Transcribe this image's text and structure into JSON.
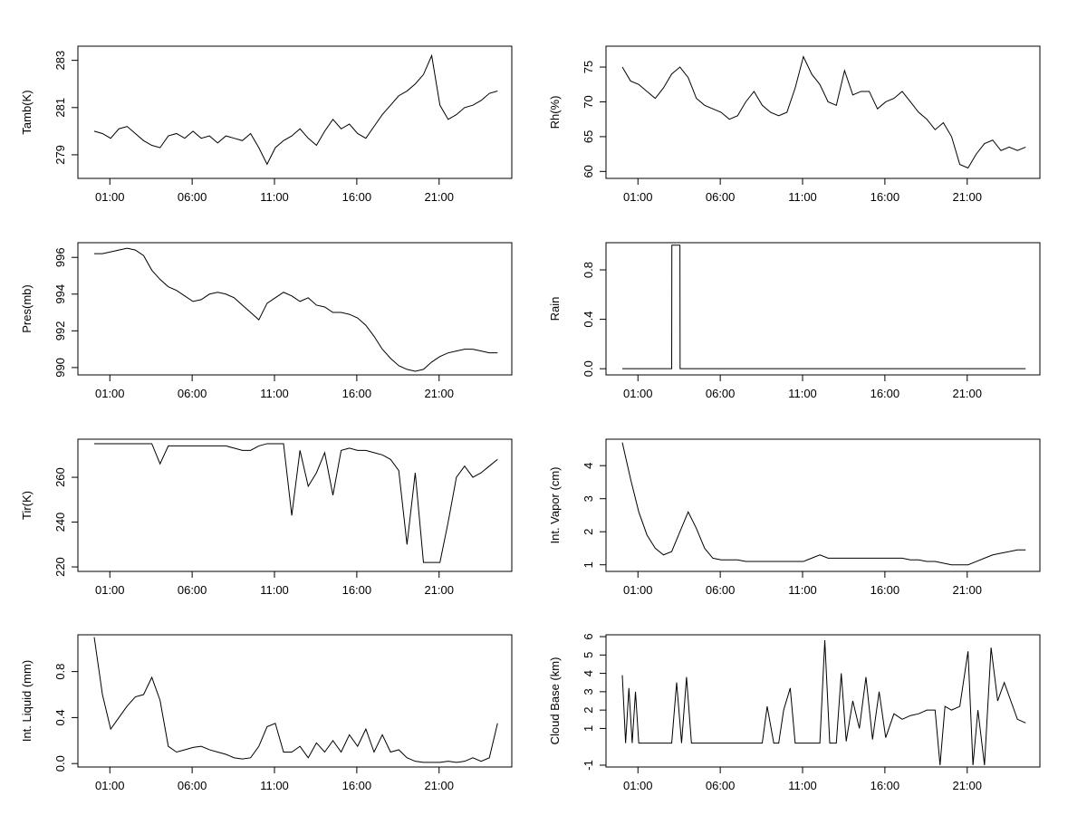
{
  "chart_data": [
    {
      "type": "line",
      "ylabel": "Tamb(K)",
      "xticks": [
        "01:00",
        "06:00",
        "11:00",
        "16:00",
        "21:00"
      ],
      "yticks": [
        279,
        281,
        283
      ],
      "ylim": [
        278.0,
        283.6
      ],
      "series": [
        {
          "x": [
            0,
            0.5,
            1,
            1.5,
            2,
            2.5,
            3,
            3.5,
            4,
            4.5,
            5,
            5.5,
            6,
            6.5,
            7,
            7.5,
            8,
            8.5,
            9,
            9.5,
            10,
            10.5,
            11,
            11.5,
            12,
            12.5,
            13,
            13.5,
            14,
            14.5,
            15,
            15.5,
            16,
            16.5,
            17,
            17.5,
            18,
            18.5,
            19,
            19.5,
            20,
            20.5,
            21,
            21.5,
            22,
            22.5,
            23,
            23.5,
            24,
            24.5
          ],
          "y": [
            280.0,
            279.9,
            279.7,
            280.1,
            280.2,
            279.9,
            279.6,
            279.4,
            279.3,
            279.8,
            279.9,
            279.7,
            280.0,
            279.7,
            279.8,
            279.5,
            279.8,
            279.7,
            279.6,
            279.9,
            279.3,
            278.6,
            279.3,
            279.6,
            279.8,
            280.1,
            279.7,
            279.4,
            280.0,
            280.5,
            280.1,
            280.3,
            279.9,
            279.7,
            280.2,
            280.7,
            281.1,
            281.5,
            281.7,
            282.0,
            282.4,
            283.2,
            281.1,
            280.5,
            280.7,
            281.0,
            281.1,
            281.3,
            281.6,
            281.7
          ]
        }
      ]
    },
    {
      "type": "line",
      "ylabel": "Rh(%)",
      "xticks": [
        "01:00",
        "06:00",
        "11:00",
        "16:00",
        "21:00"
      ],
      "yticks": [
        60,
        65,
        70,
        75
      ],
      "ylim": [
        59.0,
        78.0
      ],
      "series": [
        {
          "x": [
            0,
            0.5,
            1,
            1.5,
            2,
            2.5,
            3,
            3.5,
            4,
            4.5,
            5,
            5.5,
            6,
            6.5,
            7,
            7.5,
            8,
            8.5,
            9,
            9.5,
            10,
            10.5,
            11,
            11.5,
            12,
            12.5,
            13,
            13.5,
            14,
            14.5,
            15,
            15.5,
            16,
            16.5,
            17,
            17.5,
            18,
            18.5,
            19,
            19.5,
            20,
            20.5,
            21,
            21.5,
            22,
            22.5,
            23,
            23.5,
            24,
            24.5
          ],
          "y": [
            75.0,
            73.0,
            72.5,
            71.5,
            70.5,
            72.0,
            74.0,
            75.0,
            73.5,
            70.5,
            69.5,
            69.0,
            68.5,
            67.5,
            68.0,
            70.0,
            71.5,
            69.5,
            68.5,
            68.0,
            68.5,
            72.0,
            76.5,
            74.0,
            72.5,
            70.0,
            69.5,
            74.5,
            71.0,
            71.5,
            71.5,
            69.0,
            70.0,
            70.5,
            71.5,
            70.0,
            68.5,
            67.5,
            66.0,
            67.0,
            65.0,
            61.0,
            60.5,
            62.5,
            64.0,
            64.5,
            63.0,
            63.5,
            63.0,
            63.5
          ]
        }
      ]
    },
    {
      "type": "line",
      "ylabel": "Pres(mb)",
      "xticks": [
        "01:00",
        "06:00",
        "11:00",
        "16:00",
        "21:00"
      ],
      "yticks": [
        990,
        992,
        994,
        996
      ],
      "ylim": [
        989.6,
        996.8
      ],
      "series": [
        {
          "x": [
            0,
            0.5,
            1,
            1.5,
            2,
            2.5,
            3,
            3.5,
            4,
            4.5,
            5,
            5.5,
            6,
            6.5,
            7,
            7.5,
            8,
            8.5,
            9,
            9.5,
            10,
            10.5,
            11,
            11.5,
            12,
            12.5,
            13,
            13.5,
            14,
            14.5,
            15,
            15.5,
            16,
            16.5,
            17,
            17.5,
            18,
            18.5,
            19,
            19.5,
            20,
            20.5,
            21,
            21.5,
            22,
            22.5,
            23,
            23.5,
            24,
            24.5
          ],
          "y": [
            996.2,
            996.2,
            996.3,
            996.4,
            996.5,
            996.4,
            996.1,
            995.3,
            994.8,
            994.4,
            994.2,
            993.9,
            993.6,
            993.7,
            994.0,
            994.1,
            994.0,
            993.8,
            993.4,
            993.0,
            992.6,
            993.5,
            993.8,
            994.1,
            993.9,
            993.6,
            993.8,
            993.4,
            993.3,
            993.0,
            993.0,
            992.9,
            992.7,
            992.3,
            991.7,
            991.0,
            990.5,
            990.1,
            989.9,
            989.8,
            989.9,
            990.3,
            990.6,
            990.8,
            990.9,
            991.0,
            991.0,
            990.9,
            990.8,
            990.8
          ]
        }
      ]
    },
    {
      "type": "line",
      "ylabel": "Rain",
      "xticks": [
        "01:00",
        "06:00",
        "11:00",
        "16:00",
        "21:00"
      ],
      "yticks": [
        0.0,
        0.4,
        0.8
      ],
      "ylim": [
        -0.05,
        1.02
      ],
      "series": [
        {
          "x": [
            0,
            3.0,
            3.01,
            3.5,
            3.51,
            24.5
          ],
          "y": [
            0,
            0,
            1,
            1,
            0,
            0
          ]
        }
      ]
    },
    {
      "type": "line",
      "ylabel": "Tir(K)",
      "xticks": [
        "01:00",
        "06:00",
        "11:00",
        "16:00",
        "21:00"
      ],
      "yticks": [
        220,
        240,
        260
      ],
      "ylim": [
        218,
        277
      ],
      "series": [
        {
          "x": [
            0,
            0.5,
            1,
            1.5,
            2,
            2.5,
            3,
            3.5,
            4,
            4.5,
            5,
            5.5,
            6,
            6.5,
            7,
            7.5,
            8,
            8.5,
            9,
            9.5,
            10,
            10.5,
            11,
            11.5,
            12,
            12.5,
            13,
            13.5,
            14,
            14.5,
            15,
            15.5,
            16,
            16.5,
            17,
            17.5,
            18,
            18.5,
            19,
            19.5,
            20,
            20.5,
            21,
            21.5,
            22,
            22.5,
            23,
            23.5,
            24,
            24.5
          ],
          "y": [
            275,
            275,
            275,
            275,
            275,
            275,
            275,
            275,
            266,
            274,
            274,
            274,
            274,
            274,
            274,
            274,
            274,
            273,
            272,
            272,
            274,
            275,
            275,
            275,
            243,
            272,
            256,
            262,
            271,
            252,
            272,
            273,
            272,
            272,
            271,
            270,
            268,
            263,
            230,
            262,
            222,
            222,
            222,
            240,
            260,
            265,
            260,
            262,
            265,
            268
          ]
        }
      ]
    },
    {
      "type": "line",
      "ylabel": "Int. Vapor (cm)",
      "xticks": [
        "01:00",
        "06:00",
        "11:00",
        "16:00",
        "21:00"
      ],
      "yticks": [
        1,
        2,
        3,
        4
      ],
      "ylim": [
        0.8,
        4.8
      ],
      "series": [
        {
          "x": [
            0,
            0.5,
            1,
            1.5,
            2,
            2.5,
            3,
            3.5,
            4,
            4.5,
            5,
            5.5,
            6,
            6.5,
            7,
            7.5,
            8,
            8.5,
            9,
            9.5,
            10,
            10.5,
            11,
            11.5,
            12,
            12.5,
            13,
            13.5,
            14,
            14.5,
            15,
            15.5,
            16,
            16.5,
            17,
            17.5,
            18,
            18.5,
            19,
            19.5,
            20,
            20.5,
            21,
            21.5,
            22,
            22.5,
            23,
            23.5,
            24,
            24.5
          ],
          "y": [
            4.7,
            3.6,
            2.6,
            1.9,
            1.5,
            1.3,
            1.4,
            2.0,
            2.6,
            2.1,
            1.5,
            1.2,
            1.15,
            1.15,
            1.15,
            1.1,
            1.1,
            1.1,
            1.1,
            1.1,
            1.1,
            1.1,
            1.1,
            1.2,
            1.3,
            1.2,
            1.2,
            1.2,
            1.2,
            1.2,
            1.2,
            1.2,
            1.2,
            1.2,
            1.2,
            1.15,
            1.15,
            1.1,
            1.1,
            1.05,
            1.0,
            1.0,
            1.0,
            1.1,
            1.2,
            1.3,
            1.35,
            1.4,
            1.45,
            1.45
          ]
        }
      ]
    },
    {
      "type": "line",
      "ylabel": "Int. Liquid (mm)",
      "xticks": [
        "01:00",
        "06:00",
        "11:00",
        "16:00",
        "21:00"
      ],
      "yticks": [
        0.0,
        0.4,
        0.8
      ],
      "ylim": [
        -0.03,
        1.12
      ],
      "series": [
        {
          "x": [
            0,
            0.5,
            1,
            1.5,
            2,
            2.5,
            3,
            3.5,
            4,
            4.5,
            5,
            5.5,
            6,
            6.5,
            7,
            7.5,
            8,
            8.5,
            9,
            9.5,
            10,
            10.5,
            11,
            11.5,
            12,
            12.5,
            13,
            13.5,
            14,
            14.5,
            15,
            15.5,
            16,
            16.5,
            17,
            17.5,
            18,
            18.5,
            19,
            19.5,
            20,
            20.5,
            21,
            21.5,
            22,
            22.5,
            23,
            23.5,
            24,
            24.5
          ],
          "y": [
            1.1,
            0.6,
            0.3,
            0.4,
            0.5,
            0.58,
            0.6,
            0.75,
            0.55,
            0.15,
            0.1,
            0.12,
            0.14,
            0.15,
            0.12,
            0.1,
            0.08,
            0.05,
            0.04,
            0.05,
            0.15,
            0.32,
            0.35,
            0.1,
            0.1,
            0.15,
            0.05,
            0.18,
            0.1,
            0.2,
            0.1,
            0.25,
            0.15,
            0.3,
            0.1,
            0.25,
            0.1,
            0.12,
            0.05,
            0.02,
            0.01,
            0.01,
            0.01,
            0.02,
            0.01,
            0.02,
            0.05,
            0.02,
            0.05,
            0.35
          ]
        }
      ]
    },
    {
      "type": "line",
      "ylabel": "Cloud Base (km)",
      "xticks": [
        "01:00",
        "06:00",
        "11:00",
        "16:00",
        "21:00"
      ],
      "yticks": [
        -1,
        1,
        2,
        3,
        4,
        5,
        6
      ],
      "ylim": [
        -1.1,
        6.1
      ],
      "series": [
        {
          "x": [
            0,
            0.2,
            0.4,
            0.6,
            0.8,
            1.0,
            1.5,
            2.0,
            2.5,
            3.0,
            3.3,
            3.6,
            3.9,
            4.2,
            4.5,
            5,
            6,
            7,
            8,
            8.5,
            8.8,
            9.2,
            9.5,
            9.8,
            10.2,
            10.5,
            11,
            11.5,
            12,
            12.3,
            12.6,
            13,
            13.3,
            13.6,
            14,
            14.4,
            14.8,
            15.2,
            15.6,
            16,
            16.5,
            17,
            17.5,
            18,
            18.5,
            19,
            19.3,
            19.6,
            20,
            20.5,
            21,
            21.3,
            21.6,
            22,
            22.4,
            22.8,
            23.2,
            23.6,
            24,
            24.5
          ],
          "y": [
            3.9,
            0.2,
            3.2,
            0.2,
            3.0,
            0.2,
            0.2,
            0.2,
            0.2,
            0.2,
            3.5,
            0.2,
            3.8,
            0.2,
            0.2,
            0.2,
            0.2,
            0.2,
            0.2,
            0.2,
            2.2,
            0.2,
            0.2,
            2.0,
            3.2,
            0.2,
            0.2,
            0.2,
            0.2,
            5.8,
            0.2,
            0.2,
            4.0,
            0.3,
            2.5,
            1.0,
            3.8,
            0.4,
            3.0,
            0.5,
            1.8,
            1.5,
            1.7,
            1.8,
            2.0,
            2.0,
            -1.0,
            2.2,
            2.0,
            2.2,
            5.2,
            -1.0,
            2.0,
            -1.0,
            5.4,
            2.5,
            3.5,
            2.5,
            1.5,
            1.3
          ]
        }
      ]
    }
  ]
}
